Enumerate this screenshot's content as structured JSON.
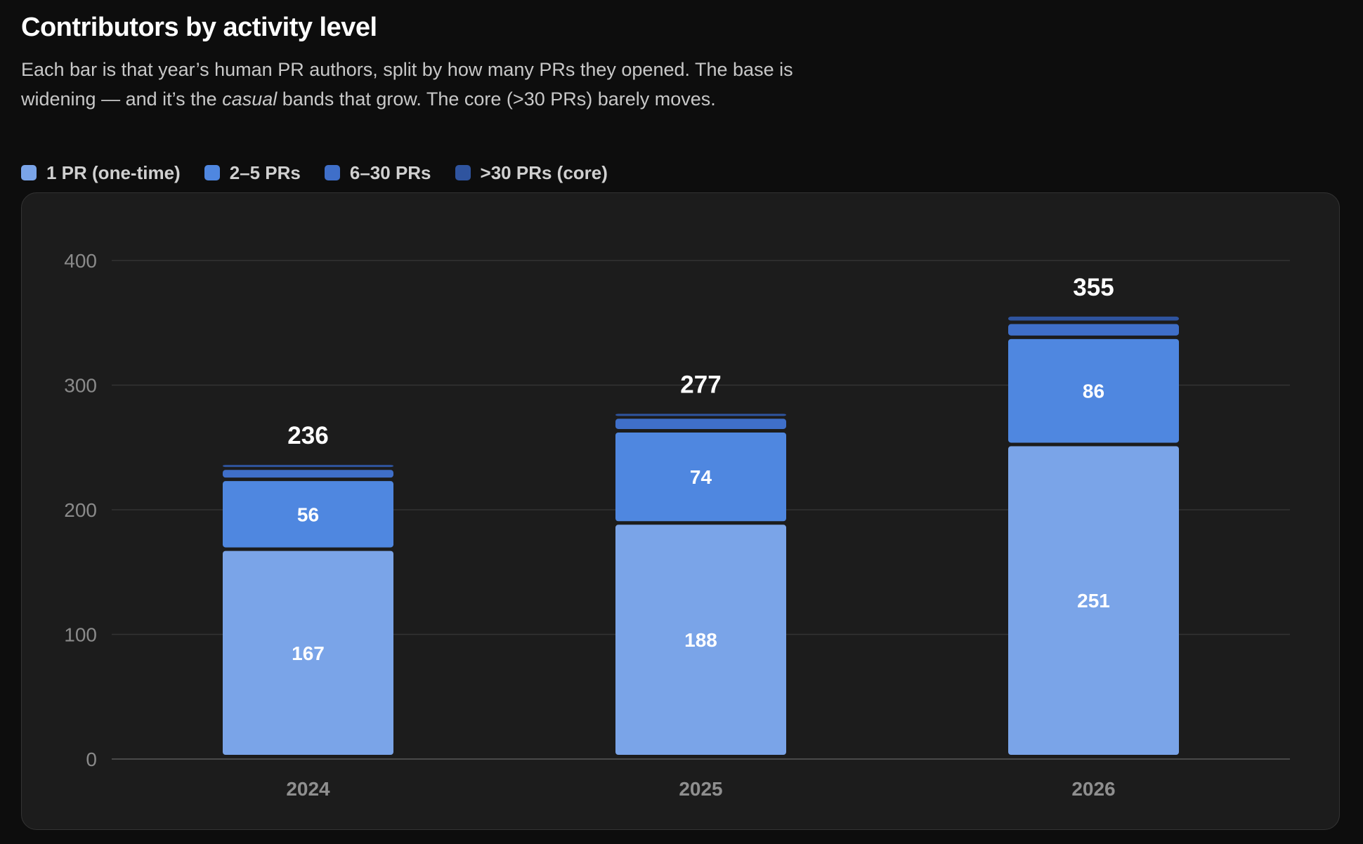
{
  "header": {
    "title": "Contributors by activity level",
    "subtitle_part1": "Each bar is that year’s human PR authors, split by how many PRs they opened. The base is widening — and it’s the ",
    "subtitle_emphasis": "casual",
    "subtitle_part2": " bands that grow. The core (>30 PRs) barely moves."
  },
  "legend": [
    {
      "label": "1 PR (one-time)",
      "color": "#7aa4e8"
    },
    {
      "label": "2–5 PRs",
      "color": "#4f87e0"
    },
    {
      "label": "6–30 PRs",
      "color": "#3f6fc9"
    },
    {
      "label": ">30 PRs (core)",
      "color": "#2f549f"
    }
  ],
  "chart_data": {
    "type": "bar",
    "stacked": true,
    "title": "Contributors by activity level",
    "xlabel": "",
    "ylabel": "",
    "ylim": [
      0,
      400
    ],
    "yticks": [
      0,
      100,
      200,
      300,
      400
    ],
    "grid": true,
    "legend_position": "top-left",
    "categories": [
      "2024",
      "2025",
      "2026"
    ],
    "series": [
      {
        "name": "1 PR (one-time)",
        "color": "#7aa4e8",
        "values": [
          167,
          188,
          251
        ]
      },
      {
        "name": "2–5 PRs",
        "color": "#4f87e0",
        "values": [
          56,
          74,
          86
        ]
      },
      {
        "name": "6–30 PRs",
        "color": "#3f6fc9",
        "values": [
          9,
          11,
          12
        ]
      },
      {
        "name": ">30 PRs (core)",
        "color": "#2f549f",
        "values": [
          4,
          4,
          6
        ]
      }
    ],
    "totals": [
      236,
      277,
      355
    ]
  }
}
